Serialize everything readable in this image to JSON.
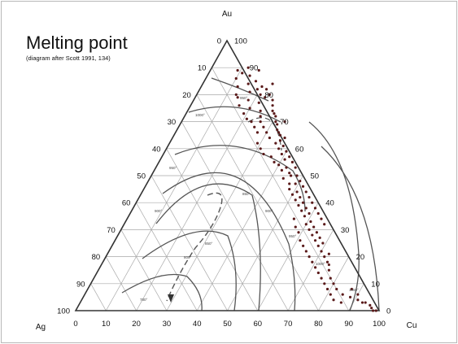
{
  "slide": {
    "title": "Melting point",
    "subtitle": "(diagram after Scott 1991, 134)"
  },
  "diagram": {
    "corners": {
      "top": "Au",
      "left": "Ag",
      "right": "Cu"
    },
    "ticks": [
      "0",
      "10",
      "20",
      "30",
      "40",
      "50",
      "60",
      "70",
      "80",
      "90",
      "100"
    ],
    "isotherm_labels": [
      "950°",
      "1000°",
      "950°",
      "900°",
      "850°",
      "900°",
      "850°",
      "800°",
      "950°",
      "1000°",
      "1050°",
      "780°"
    ],
    "colors": {
      "frame": "#333333",
      "grid": "#a9a9a9",
      "isotherm": "#555555",
      "points": "#5a1a1a"
    }
  },
  "samples": [
    [
      0.15,
      0.84
    ],
    [
      0.19,
      0.82
    ],
    [
      0.12,
      0.83
    ],
    [
      0.17,
      0.81
    ],
    [
      0.21,
      0.8
    ],
    [
      0.14,
      0.79
    ],
    [
      0.18,
      0.78
    ],
    [
      0.22,
      0.77
    ],
    [
      0.16,
      0.76
    ],
    [
      0.2,
      0.75
    ],
    [
      0.24,
      0.74
    ],
    [
      0.13,
      0.8
    ],
    [
      0.19,
      0.73
    ],
    [
      0.25,
      0.72
    ],
    [
      0.23,
      0.79
    ],
    [
      0.27,
      0.76
    ],
    [
      0.21,
      0.71
    ],
    [
      0.26,
      0.7
    ],
    [
      0.29,
      0.73
    ],
    [
      0.28,
      0.68
    ],
    [
      0.31,
      0.7
    ],
    [
      0.3,
      0.66
    ],
    [
      0.33,
      0.67
    ],
    [
      0.32,
      0.64
    ],
    [
      0.35,
      0.62
    ],
    [
      0.34,
      0.66
    ],
    [
      0.37,
      0.6
    ],
    [
      0.36,
      0.63
    ],
    [
      0.39,
      0.58
    ],
    [
      0.38,
      0.61
    ],
    [
      0.41,
      0.56
    ],
    [
      0.4,
      0.59
    ],
    [
      0.43,
      0.53
    ],
    [
      0.42,
      0.57
    ],
    [
      0.45,
      0.51
    ],
    [
      0.44,
      0.49
    ],
    [
      0.47,
      0.47
    ],
    [
      0.46,
      0.5
    ],
    [
      0.48,
      0.45
    ],
    [
      0.5,
      0.43
    ],
    [
      0.49,
      0.47
    ],
    [
      0.52,
      0.41
    ],
    [
      0.51,
      0.44
    ],
    [
      0.54,
      0.39
    ],
    [
      0.53,
      0.42
    ],
    [
      0.56,
      0.37
    ],
    [
      0.55,
      0.4
    ],
    [
      0.58,
      0.35
    ],
    [
      0.57,
      0.38
    ],
    [
      0.6,
      0.32
    ],
    [
      0.59,
      0.36
    ],
    [
      0.62,
      0.3
    ],
    [
      0.61,
      0.33
    ],
    [
      0.64,
      0.28
    ],
    [
      0.63,
      0.31
    ],
    [
      0.66,
      0.26
    ],
    [
      0.65,
      0.29
    ],
    [
      0.68,
      0.24
    ],
    [
      0.67,
      0.27
    ],
    [
      0.7,
      0.22
    ],
    [
      0.69,
      0.25
    ],
    [
      0.72,
      0.2
    ],
    [
      0.74,
      0.18
    ],
    [
      0.73,
      0.21
    ],
    [
      0.76,
      0.15
    ],
    [
      0.75,
      0.17
    ],
    [
      0.78,
      0.12
    ],
    [
      0.8,
      0.1
    ],
    [
      0.82,
      0.08
    ],
    [
      0.85,
      0.06
    ],
    [
      0.88,
      0.05
    ],
    [
      0.91,
      0.04
    ],
    [
      0.94,
      0.03
    ],
    [
      0.97,
      0.01
    ],
    [
      0.98,
      0.0
    ],
    [
      0.99,
      0.0
    ],
    [
      0.96,
      0.02
    ],
    [
      0.93,
      0.03
    ],
    [
      0.9,
      0.06
    ],
    [
      0.87,
      0.08
    ],
    [
      0.1,
      0.86
    ],
    [
      0.11,
      0.88
    ],
    [
      0.14,
      0.87
    ],
    [
      0.17,
      0.85
    ],
    [
      0.2,
      0.83
    ],
    [
      0.22,
      0.82
    ],
    [
      0.24,
      0.8
    ],
    [
      0.09,
      0.89
    ],
    [
      0.12,
      0.9
    ],
    [
      0.16,
      0.89
    ],
    [
      0.23,
      0.84
    ],
    [
      0.26,
      0.78
    ],
    [
      0.28,
      0.74
    ],
    [
      0.3,
      0.72
    ],
    [
      0.32,
      0.69
    ],
    [
      0.34,
      0.7
    ],
    [
      0.35,
      0.65
    ],
    [
      0.37,
      0.64
    ],
    [
      0.31,
      0.6
    ],
    [
      0.29,
      0.62
    ],
    [
      0.27,
      0.66
    ],
    [
      0.33,
      0.58
    ],
    [
      0.36,
      0.57
    ],
    [
      0.38,
      0.55
    ],
    [
      0.25,
      0.68
    ],
    [
      0.23,
      0.7
    ],
    [
      0.4,
      0.54
    ],
    [
      0.42,
      0.52
    ],
    [
      0.44,
      0.55
    ],
    [
      0.46,
      0.53
    ],
    [
      0.48,
      0.5
    ],
    [
      0.5,
      0.48
    ],
    [
      0.52,
      0.46
    ],
    [
      0.54,
      0.44
    ],
    [
      0.56,
      0.42
    ],
    [
      0.58,
      0.4
    ],
    [
      0.6,
      0.38
    ],
    [
      0.62,
      0.36
    ],
    [
      0.64,
      0.34
    ],
    [
      0.66,
      0.32
    ],
    [
      0.55,
      0.34
    ],
    [
      0.57,
      0.31
    ],
    [
      0.59,
      0.29
    ],
    [
      0.61,
      0.26
    ],
    [
      0.63,
      0.24
    ],
    [
      0.65,
      0.22
    ],
    [
      0.67,
      0.2
    ],
    [
      0.69,
      0.18
    ],
    [
      0.71,
      0.16
    ],
    [
      0.73,
      0.14
    ],
    [
      0.75,
      0.12
    ],
    [
      0.77,
      0.1
    ],
    [
      0.79,
      0.08
    ],
    [
      0.81,
      0.06
    ],
    [
      0.83,
      0.04
    ],
    [
      0.86,
      0.03
    ]
  ]
}
